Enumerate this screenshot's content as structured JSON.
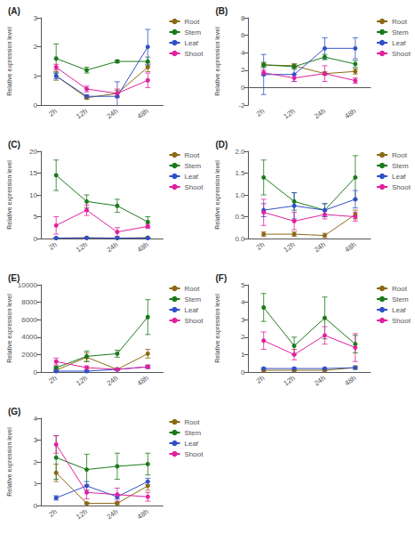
{
  "chart_data": [
    {
      "type": "line",
      "title": "(A)",
      "ylabel": "Relative expression level",
      "categories": [
        "2h",
        "12h",
        "24h",
        "48h"
      ],
      "ylim": [
        0,
        3
      ],
      "yticks": [
        0,
        1,
        2,
        3
      ],
      "grid": false,
      "legend": "right",
      "marker": "circle",
      "series": [
        {
          "name": "Root",
          "color": "#8B6914",
          "values": [
            1.0,
            0.25,
            0.4,
            1.3
          ],
          "err": [
            0.15,
            0.05,
            0.1,
            0.15
          ]
        },
        {
          "name": "Stem",
          "color": "#1a7a1a",
          "values": [
            1.6,
            1.2,
            1.5,
            1.5
          ],
          "err": [
            0.5,
            0.1,
            0.05,
            0.15
          ]
        },
        {
          "name": "Leaf",
          "color": "#3050c8",
          "values": [
            1.0,
            0.3,
            0.3,
            2.0
          ],
          "err": [
            0.1,
            0.05,
            0.5,
            0.6
          ]
        },
        {
          "name": "Shoot",
          "color": "#e020a0",
          "values": [
            1.3,
            0.55,
            0.4,
            0.85
          ],
          "err": [
            0.1,
            0.1,
            0.15,
            0.25
          ]
        }
      ]
    },
    {
      "type": "line",
      "title": "(B)",
      "ylabel": "Relative expression level",
      "categories": [
        "2h",
        "12h",
        "24h",
        "48h"
      ],
      "ylim": [
        -2,
        8
      ],
      "yticks": [
        -2,
        0,
        2,
        4,
        6,
        8
      ],
      "grid": false,
      "legend": "right",
      "marker": "circle",
      "series": [
        {
          "name": "Root",
          "color": "#8B6914",
          "values": [
            2.6,
            2.5,
            1.6,
            1.85
          ],
          "err": [
            0.2,
            0.2,
            0.2,
            0.3
          ]
        },
        {
          "name": "Stem",
          "color": "#1a7a1a",
          "values": [
            2.6,
            2.4,
            3.5,
            2.7
          ],
          "err": [
            0.3,
            0.3,
            0.3,
            0.4
          ]
        },
        {
          "name": "Leaf",
          "color": "#3050c8",
          "values": [
            1.5,
            1.5,
            4.5,
            4.5
          ],
          "err": [
            2.3,
            0.8,
            1.2,
            1.2
          ]
        },
        {
          "name": "Shoot",
          "color": "#e020a0",
          "values": [
            1.7,
            1.1,
            1.6,
            0.8
          ],
          "err": [
            0.3,
            0.4,
            0.9,
            0.3
          ]
        }
      ]
    },
    {
      "type": "line",
      "title": "(C)",
      "ylabel": "Relative expression level",
      "categories": [
        "2h",
        "12h",
        "24h",
        "48h"
      ],
      "ylim": [
        0,
        20
      ],
      "yticks": [
        0,
        5,
        10,
        15,
        20
      ],
      "grid": false,
      "legend": "right",
      "marker": "circle",
      "series": [
        {
          "name": "Root",
          "color": "#8B6914",
          "values": [
            0.1,
            0.15,
            0.1,
            0.2
          ],
          "err": [
            0.05,
            0.05,
            0.05,
            0.05
          ]
        },
        {
          "name": "Stem",
          "color": "#1a7a1a",
          "values": [
            14.5,
            8.5,
            7.5,
            3.8
          ],
          "err": [
            3.5,
            1.5,
            1.5,
            1.2
          ]
        },
        {
          "name": "Leaf",
          "color": "#3050c8",
          "values": [
            0.1,
            0.15,
            0.1,
            0.1
          ],
          "err": [
            0.05,
            0.05,
            0.05,
            0.05
          ]
        },
        {
          "name": "Shoot",
          "color": "#e020a0",
          "values": [
            3.0,
            6.5,
            1.5,
            2.8
          ],
          "err": [
            2.0,
            1.2,
            1.0,
            0.5
          ]
        }
      ]
    },
    {
      "type": "line",
      "title": "(D)",
      "ylabel": "Relative expression level",
      "categories": [
        "2h",
        "12h",
        "24h",
        "48h"
      ],
      "ylim": [
        0,
        2
      ],
      "yticks": [
        {
          "value": 0,
          "label": "0.0"
        },
        0.5,
        {
          "value": 1,
          "label": "1.0"
        },
        1.5,
        {
          "value": 2,
          "label": "2.0"
        }
      ],
      "grid": false,
      "legend": "right",
      "marker": "circle",
      "series": [
        {
          "name": "Root",
          "color": "#8B6914",
          "values": [
            0.1,
            0.1,
            0.07,
            0.55
          ],
          "err": [
            0.05,
            0.05,
            0.05,
            0.1
          ]
        },
        {
          "name": "Stem",
          "color": "#1a7a1a",
          "values": [
            1.4,
            0.85,
            0.65,
            1.4
          ],
          "err": [
            0.4,
            0.2,
            0.15,
            0.5
          ]
        },
        {
          "name": "Leaf",
          "color": "#3050c8",
          "values": [
            0.65,
            0.75,
            0.65,
            0.9
          ],
          "err": [
            0.15,
            0.3,
            0.15,
            0.2
          ]
        },
        {
          "name": "Shoot",
          "color": "#e020a0",
          "values": [
            0.6,
            0.4,
            0.55,
            0.5
          ],
          "err": [
            0.3,
            0.2,
            0.1,
            0.1
          ]
        }
      ]
    },
    {
      "type": "line",
      "title": "(E)",
      "ylabel": "Relative expression level",
      "categories": [
        "2h",
        "12h",
        "24h",
        "48h"
      ],
      "ylim": [
        0,
        10000
      ],
      "yticks": [
        0,
        2000,
        4000,
        6000,
        8000,
        10000
      ],
      "grid": false,
      "legend": "right",
      "marker": "circle",
      "series": [
        {
          "name": "Root",
          "color": "#8B6914",
          "values": [
            200,
            1700,
            300,
            2100
          ],
          "err": [
            100,
            500,
            100,
            500
          ]
        },
        {
          "name": "Stem",
          "color": "#1a7a1a",
          "values": [
            500,
            1800,
            2100,
            6300
          ],
          "err": [
            100,
            600,
            400,
            2000
          ]
        },
        {
          "name": "Leaf",
          "color": "#3050c8",
          "values": [
            100,
            100,
            300,
            600
          ],
          "err": [
            50,
            50,
            100,
            150
          ]
        },
        {
          "name": "Shoot",
          "color": "#e020a0",
          "values": [
            1200,
            500,
            300,
            600
          ],
          "err": [
            400,
            200,
            100,
            200
          ]
        }
      ]
    },
    {
      "type": "line",
      "title": "(F)",
      "ylabel": "Relative expression level",
      "categories": [
        "2h",
        "12h",
        "24h",
        "48h"
      ],
      "ylim": [
        0,
        5
      ],
      "yticks": [
        0,
        1,
        2,
        3,
        4,
        5
      ],
      "grid": false,
      "legend": "right",
      "marker": "circle",
      "series": [
        {
          "name": "Root",
          "color": "#8B6914",
          "values": [
            0.1,
            0.1,
            0.1,
            0.25
          ],
          "err": [
            0.05,
            0.05,
            0.05,
            0.1
          ]
        },
        {
          "name": "Stem",
          "color": "#1a7a1a",
          "values": [
            3.7,
            1.5,
            3.1,
            1.6
          ],
          "err": [
            0.8,
            0.5,
            1.2,
            0.5
          ]
        },
        {
          "name": "Leaf",
          "color": "#3050c8",
          "values": [
            0.2,
            0.2,
            0.2,
            0.25
          ],
          "err": [
            0.05,
            0.05,
            0.05,
            0.05
          ]
        },
        {
          "name": "Shoot",
          "color": "#e020a0",
          "values": [
            1.8,
            1.0,
            2.1,
            1.4
          ],
          "err": [
            0.5,
            0.3,
            0.5,
            0.8
          ]
        }
      ]
    },
    {
      "type": "line",
      "title": "(G)",
      "ylabel": "Relative expression level",
      "categories": [
        "2h",
        "12h",
        "24h",
        "48h"
      ],
      "ylim": [
        0,
        4
      ],
      "yticks": [
        0,
        1,
        2,
        3,
        4
      ],
      "grid": false,
      "legend": "right",
      "marker": "circle",
      "series": [
        {
          "name": "Root",
          "color": "#8B6914",
          "values": [
            1.5,
            0.1,
            0.1,
            0.9
          ],
          "err": [
            0.4,
            0.05,
            0.05,
            0.2
          ]
        },
        {
          "name": "Stem",
          "color": "#1a7a1a",
          "values": [
            2.2,
            1.65,
            1.8,
            1.9
          ],
          "err": [
            1.0,
            0.7,
            0.6,
            0.5
          ]
        },
        {
          "name": "Leaf",
          "color": "#3050c8",
          "values": [
            0.35,
            0.9,
            0.4,
            1.1
          ],
          "err": [
            0.1,
            0.2,
            0.1,
            0.15
          ]
        },
        {
          "name": "Shoot",
          "color": "#e020a0",
          "values": [
            2.8,
            0.6,
            0.5,
            0.4
          ],
          "err": [
            0.4,
            0.3,
            0.3,
            0.2
          ]
        }
      ]
    }
  ]
}
